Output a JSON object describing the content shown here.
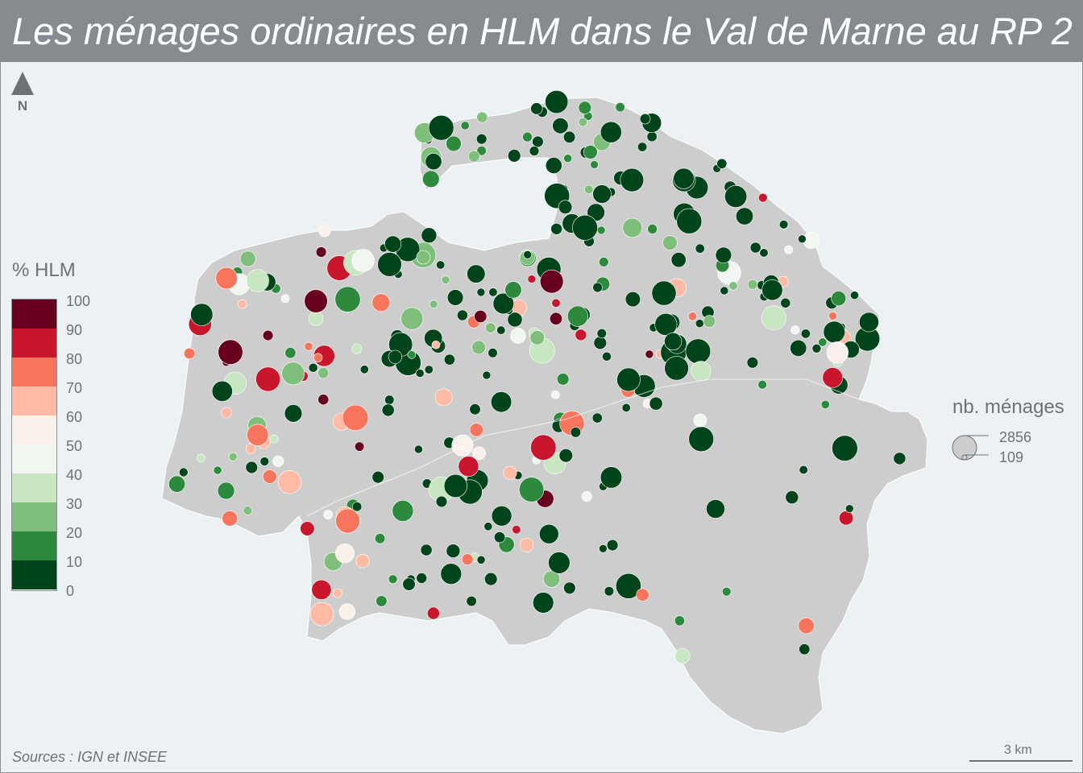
{
  "title": "Les ménages ordinaires en HLM dans le Val de Marne au RP 2",
  "north_label": "N",
  "legend": {
    "title": "% HLM",
    "ticks": [
      "100",
      "90",
      "80",
      "70",
      "60",
      "50",
      "40",
      "30",
      "20",
      "10",
      "0"
    ],
    "class_colors": [
      "#67001f",
      "#c8162d",
      "#f6755c",
      "#fdbba5",
      "#fbf1ec",
      "#f1f7f0",
      "#c8e6c1",
      "#7fbf7b",
      "#2d8a3d",
      "#00441b"
    ]
  },
  "size_legend": {
    "title": "nb. ménages",
    "max_value": "2856",
    "min_value": "109"
  },
  "sources": "Sources : IGN et INSEE",
  "scale_bar": "3 km",
  "colors": {
    "title_bar": "#858b8e",
    "background": "#ecf2f4",
    "territory": "#cdcdcd",
    "text": "#6d7276"
  }
}
